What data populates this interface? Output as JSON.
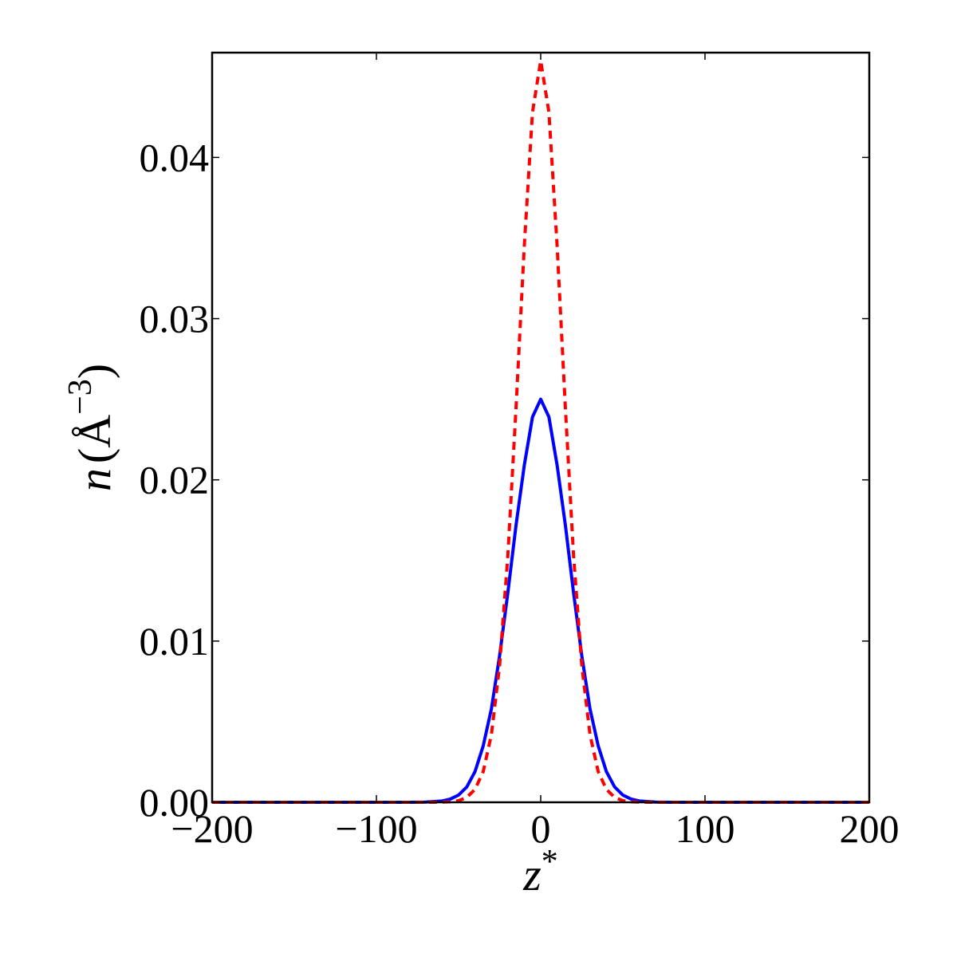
{
  "chart_data": {
    "type": "line",
    "title": "",
    "xlabel": {
      "main": "z",
      "sup": "*"
    },
    "ylabel": {
      "main": "n",
      "open": "(",
      "unit": "Å",
      "sup": "−3",
      "close": ")"
    },
    "xlim": [
      -200,
      200
    ],
    "ylim": [
      0,
      0.0465
    ],
    "grid": false,
    "legend": "none",
    "xticks": [
      -200,
      -100,
      0,
      100,
      200
    ],
    "xtick_labels": [
      "−200",
      "−100",
      "0",
      "100",
      "200"
    ],
    "yticks": [
      0,
      0.01,
      0.02,
      0.03,
      0.04
    ],
    "ytick_labels": [
      "0.00",
      "0.01",
      "0.02",
      "0.03",
      "0.04"
    ],
    "x": [
      -200,
      -100,
      -80,
      -70,
      -60,
      -55,
      -50,
      -45,
      -40,
      -35,
      -30,
      -25,
      -20,
      -15,
      -10,
      -5,
      0,
      5,
      10,
      15,
      20,
      25,
      30,
      35,
      40,
      45,
      50,
      55,
      60,
      70,
      80,
      100,
      200
    ],
    "series": [
      {
        "color": "#0000ff",
        "style": "solid",
        "values": [
          0,
          0,
          0,
          1e-05,
          8e-05,
          0.0002,
          0.00045,
          0.00095,
          0.0019,
          0.0035,
          0.0058,
          0.0091,
          0.013,
          0.0172,
          0.0209,
          0.0239,
          0.025,
          0.0239,
          0.0209,
          0.0172,
          0.013,
          0.0091,
          0.0058,
          0.0035,
          0.0019,
          0.00095,
          0.00045,
          0.0002,
          8e-05,
          1e-05,
          0,
          0,
          0
        ]
      },
      {
        "color": "#ff0000",
        "style": "dashed",
        "values": [
          0,
          0,
          0,
          0,
          1e-05,
          3e-05,
          0.0001,
          0.0003,
          0.0008,
          0.0019,
          0.0042,
          0.0085,
          0.0153,
          0.0245,
          0.0345,
          0.0428,
          0.046,
          0.0428,
          0.0345,
          0.0245,
          0.0153,
          0.0085,
          0.0042,
          0.0019,
          0.0008,
          0.0003,
          0.0001,
          3e-05,
          1e-05,
          0,
          0,
          0,
          0
        ]
      }
    ]
  }
}
